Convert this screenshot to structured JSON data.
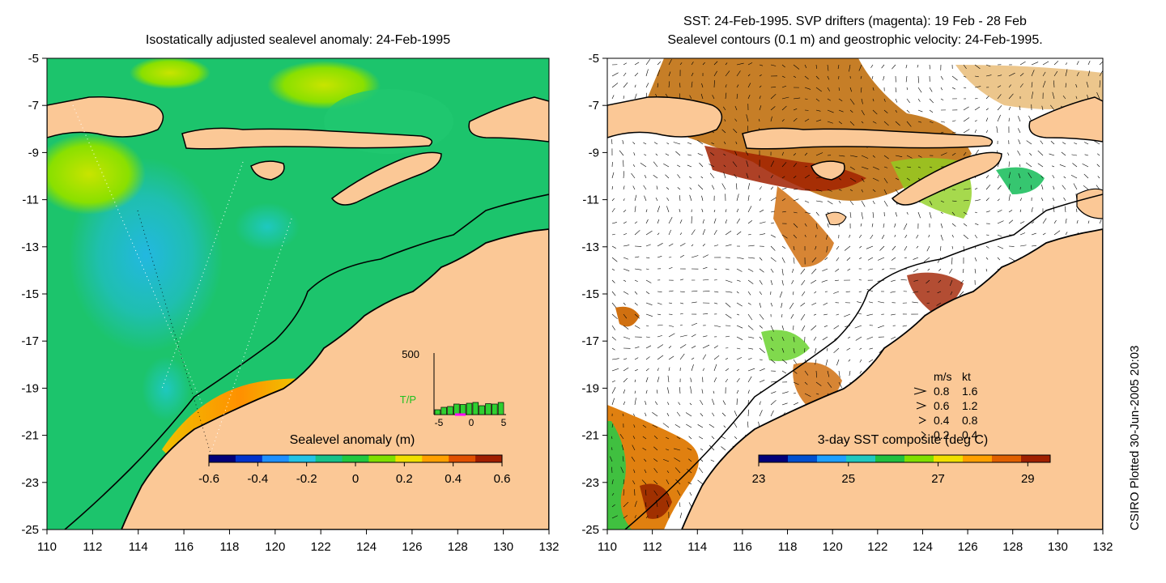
{
  "left_panel": {
    "title": "Isostatically adjusted sealevel anomaly: 24-Feb-1995",
    "colorbar_label": "Sealevel anomaly (m)",
    "colorbar_ticks": [
      "-0.6",
      "-0.4",
      "-0.2",
      "0",
      "0.2",
      "0.4",
      "0.6"
    ],
    "colorbar_colors": [
      "#00007a",
      "#0033cc",
      "#1e90ff",
      "#22c3e6",
      "#15c28a",
      "#20c840",
      "#7fe000",
      "#f0e000",
      "#ffa000",
      "#e05000",
      "#a01e00"
    ],
    "inset": {
      "top_label": "500",
      "side_label": "T/P",
      "ticks": [
        "-5",
        "0",
        "5"
      ],
      "bars": [
        0.12,
        0.18,
        0.2,
        0.26,
        0.25,
        0.28,
        0.3,
        0.22,
        0.27,
        0.26,
        0.3
      ]
    }
  },
  "right_panel": {
    "title_line1": "SST: 24-Feb-1995. SVP drifters (magenta): 19 Feb - 28 Feb",
    "title_line2": "Sealevel contours (0.1 m) and geostrophic velocity: 24-Feb-1995.",
    "colorbar_label": "3-day SST composite (deg C)",
    "colorbar_ticks": [
      "23",
      "25",
      "27",
      "29"
    ],
    "colorbar_colors": [
      "#00007a",
      "#0050d0",
      "#1ea0ff",
      "#20c8c0",
      "#20c040",
      "#80e000",
      "#f0e000",
      "#ffa000",
      "#e06000",
      "#a02000"
    ],
    "speed_legend": {
      "header_ms": "m/s",
      "header_kt": "kt",
      "rows": [
        {
          "ms": "0.8",
          "kt": "1.6"
        },
        {
          "ms": "0.6",
          "kt": "1.2"
        },
        {
          "ms": "0.4",
          "kt": "0.8"
        },
        {
          "ms": "0.2",
          "kt": "0.4"
        }
      ]
    }
  },
  "axes": {
    "lat_ticks": [
      "-5",
      "-7",
      "-9",
      "-11",
      "-13",
      "-15",
      "-17",
      "-19",
      "-21",
      "-23",
      "-25"
    ],
    "lon_ticks": [
      "110",
      "112",
      "114",
      "116",
      "118",
      "120",
      "122",
      "124",
      "126",
      "128",
      "130",
      "132"
    ]
  },
  "colors": {
    "land": "#fbc896",
    "sea_left": "#1cc46c",
    "coast": "#000000"
  },
  "credit": "CSIRO Plotted 30-Jun-2005 20:03"
}
